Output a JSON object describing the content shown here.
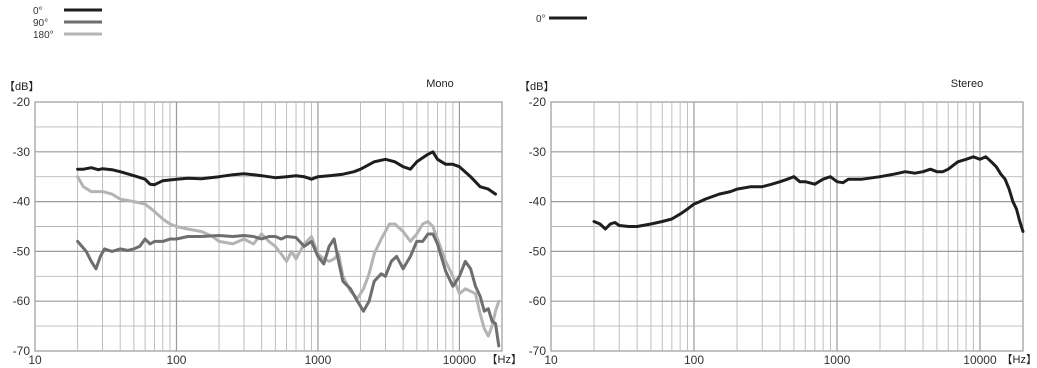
{
  "chart_data": [
    {
      "type": "line",
      "title": "Mono",
      "ylabel": "【dB】",
      "xlabel": "【Hz】",
      "x_scale": "log",
      "xlim": [
        10,
        20000
      ],
      "ylim": [
        -70,
        -20
      ],
      "x_ticks": [
        10,
        100,
        1000,
        10000
      ],
      "x_tick_labels": [
        "10",
        "100",
        "1000",
        "10000"
      ],
      "y_ticks": [
        -20,
        -30,
        -40,
        -50,
        -60,
        -70
      ],
      "y_tick_labels": [
        "-20",
        "-30",
        "-40",
        "-50",
        "-60",
        "-70"
      ],
      "grid": true,
      "legend_position": "top-left",
      "series": [
        {
          "name": "0°",
          "color": "#1e1e1e",
          "points": [
            [
              20,
              -33.5
            ],
            [
              22,
              -33.5
            ],
            [
              25,
              -33.2
            ],
            [
              28,
              -33.6
            ],
            [
              30,
              -33.4
            ],
            [
              35,
              -33.6
            ],
            [
              40,
              -34.0
            ],
            [
              50,
              -34.8
            ],
            [
              60,
              -35.5
            ],
            [
              65,
              -36.5
            ],
            [
              70,
              -36.6
            ],
            [
              80,
              -35.8
            ],
            [
              100,
              -35.5
            ],
            [
              120,
              -35.3
            ],
            [
              150,
              -35.4
            ],
            [
              200,
              -35.0
            ],
            [
              250,
              -34.6
            ],
            [
              300,
              -34.4
            ],
            [
              350,
              -34.6
            ],
            [
              400,
              -34.8
            ],
            [
              500,
              -35.2
            ],
            [
              600,
              -35.0
            ],
            [
              700,
              -34.8
            ],
            [
              800,
              -35.0
            ],
            [
              900,
              -35.5
            ],
            [
              1000,
              -35.0
            ],
            [
              1200,
              -34.8
            ],
            [
              1500,
              -34.5
            ],
            [
              1800,
              -34.0
            ],
            [
              2000,
              -33.5
            ],
            [
              2500,
              -32.0
            ],
            [
              3000,
              -31.5
            ],
            [
              3500,
              -32.0
            ],
            [
              4000,
              -33.0
            ],
            [
              4500,
              -33.5
            ],
            [
              5000,
              -32.0
            ],
            [
              6000,
              -30.5
            ],
            [
              6500,
              -30.0
            ],
            [
              7000,
              -31.5
            ],
            [
              8000,
              -32.5
            ],
            [
              9000,
              -32.5
            ],
            [
              10000,
              -33.0
            ],
            [
              12000,
              -35.0
            ],
            [
              14000,
              -37.0
            ],
            [
              16000,
              -37.5
            ],
            [
              18000,
              -38.5
            ]
          ]
        },
        {
          "name": "90°",
          "color": "#6e6e6e",
          "points": [
            [
              20,
              -48.0
            ],
            [
              23,
              -50.0
            ],
            [
              25,
              -52.0
            ],
            [
              27,
              -53.5
            ],
            [
              29,
              -51.0
            ],
            [
              31,
              -49.5
            ],
            [
              35,
              -50.0
            ],
            [
              40,
              -49.5
            ],
            [
              45,
              -49.8
            ],
            [
              50,
              -49.5
            ],
            [
              55,
              -49.0
            ],
            [
              60,
              -47.5
            ],
            [
              65,
              -48.5
            ],
            [
              70,
              -48.0
            ],
            [
              80,
              -48.0
            ],
            [
              90,
              -47.5
            ],
            [
              100,
              -47.5
            ],
            [
              120,
              -47.0
            ],
            [
              150,
              -47.0
            ],
            [
              200,
              -46.8
            ],
            [
              250,
              -47.0
            ],
            [
              300,
              -46.8
            ],
            [
              350,
              -47.0
            ],
            [
              400,
              -47.5
            ],
            [
              450,
              -47.0
            ],
            [
              500,
              -47.0
            ],
            [
              550,
              -47.5
            ],
            [
              600,
              -47.0
            ],
            [
              700,
              -47.2
            ],
            [
              800,
              -49.0
            ],
            [
              900,
              -48.0
            ],
            [
              1000,
              -51.0
            ],
            [
              1100,
              -52.5
            ],
            [
              1200,
              -49.0
            ],
            [
              1300,
              -47.5
            ],
            [
              1400,
              -52.0
            ],
            [
              1500,
              -56.0
            ],
            [
              1700,
              -57.5
            ],
            [
              1900,
              -60.0
            ],
            [
              2100,
              -62.0
            ],
            [
              2300,
              -60.0
            ],
            [
              2500,
              -56.0
            ],
            [
              2800,
              -54.5
            ],
            [
              3000,
              -55.0
            ],
            [
              3300,
              -52.0
            ],
            [
              3600,
              -51.0
            ],
            [
              4000,
              -53.5
            ],
            [
              4500,
              -51.0
            ],
            [
              5000,
              -48.0
            ],
            [
              5500,
              -48.0
            ],
            [
              6000,
              -46.5
            ],
            [
              6500,
              -46.5
            ],
            [
              7000,
              -48.5
            ],
            [
              8000,
              -54.0
            ],
            [
              9000,
              -57.0
            ],
            [
              10000,
              -55.0
            ],
            [
              11000,
              -52.0
            ],
            [
              12000,
              -53.5
            ],
            [
              13000,
              -57.0
            ],
            [
              14000,
              -59.0
            ],
            [
              15000,
              -62.0
            ],
            [
              16000,
              -61.5
            ],
            [
              17000,
              -64.0
            ],
            [
              18000,
              -64.5
            ],
            [
              19000,
              -69.0
            ]
          ]
        },
        {
          "name": "180°",
          "color": "#b4b4b4",
          "points": [
            [
              20,
              -35.0
            ],
            [
              22,
              -37.0
            ],
            [
              25,
              -38.0
            ],
            [
              30,
              -38.0
            ],
            [
              35,
              -38.5
            ],
            [
              40,
              -39.5
            ],
            [
              50,
              -40.0
            ],
            [
              60,
              -40.5
            ],
            [
              70,
              -42.0
            ],
            [
              80,
              -43.5
            ],
            [
              90,
              -44.5
            ],
            [
              100,
              -45.0
            ],
            [
              120,
              -45.5
            ],
            [
              150,
              -46.0
            ],
            [
              180,
              -47.0
            ],
            [
              200,
              -48.0
            ],
            [
              250,
              -48.5
            ],
            [
              300,
              -47.5
            ],
            [
              350,
              -48.5
            ],
            [
              400,
              -46.5
            ],
            [
              450,
              -48.0
            ],
            [
              500,
              -49.0
            ],
            [
              550,
              -50.5
            ],
            [
              600,
              -52.0
            ],
            [
              650,
              -50.0
            ],
            [
              700,
              -51.5
            ],
            [
              800,
              -48.5
            ],
            [
              900,
              -47.0
            ],
            [
              1000,
              -50.5
            ],
            [
              1100,
              -51.5
            ],
            [
              1200,
              -52.0
            ],
            [
              1300,
              -51.5
            ],
            [
              1400,
              -50.5
            ],
            [
              1500,
              -55.0
            ],
            [
              1700,
              -58.0
            ],
            [
              1900,
              -59.5
            ],
            [
              2100,
              -57.5
            ],
            [
              2300,
              -54.5
            ],
            [
              2500,
              -50.5
            ],
            [
              2800,
              -47.5
            ],
            [
              3000,
              -46.0
            ],
            [
              3200,
              -44.5
            ],
            [
              3500,
              -44.5
            ],
            [
              4000,
              -46.0
            ],
            [
              4500,
              -48.0
            ],
            [
              5000,
              -46.5
            ],
            [
              5500,
              -44.5
            ],
            [
              6000,
              -44.0
            ],
            [
              6500,
              -45.0
            ],
            [
              7000,
              -47.5
            ],
            [
              8000,
              -52.0
            ],
            [
              9000,
              -55.0
            ],
            [
              10000,
              -58.5
            ],
            [
              11000,
              -57.5
            ],
            [
              12000,
              -58.0
            ],
            [
              13000,
              -58.5
            ],
            [
              14000,
              -62.5
            ],
            [
              15000,
              -65.5
            ],
            [
              16000,
              -67.0
            ],
            [
              17000,
              -65.0
            ],
            [
              18000,
              -62.0
            ],
            [
              19000,
              -60.0
            ]
          ]
        }
      ]
    },
    {
      "type": "line",
      "title": "Stereo",
      "ylabel": "【dB】",
      "xlabel": "【Hz】",
      "x_scale": "log",
      "xlim": [
        10,
        20000
      ],
      "ylim": [
        -70,
        -20
      ],
      "x_ticks": [
        10,
        100,
        1000,
        10000
      ],
      "x_tick_labels": [
        "10",
        "100",
        "1000",
        "10000"
      ],
      "y_ticks": [
        -20,
        -30,
        -40,
        -50,
        -60,
        -70
      ],
      "y_tick_labels": [
        "-20",
        "-30",
        "-40",
        "-50",
        "-60",
        "-70"
      ],
      "grid": true,
      "legend_position": "top-left",
      "series": [
        {
          "name": "0°",
          "color": "#1e1e1e",
          "points": [
            [
              20,
              -44.0
            ],
            [
              22,
              -44.5
            ],
            [
              24,
              -45.5
            ],
            [
              26,
              -44.5
            ],
            [
              28,
              -44.2
            ],
            [
              30,
              -44.8
            ],
            [
              35,
              -45.0
            ],
            [
              40,
              -45.0
            ],
            [
              50,
              -44.5
            ],
            [
              60,
              -44.0
            ],
            [
              70,
              -43.5
            ],
            [
              80,
              -42.5
            ],
            [
              90,
              -41.5
            ],
            [
              100,
              -40.5
            ],
            [
              110,
              -40.0
            ],
            [
              120,
              -39.5
            ],
            [
              150,
              -38.5
            ],
            [
              180,
              -38.0
            ],
            [
              200,
              -37.5
            ],
            [
              250,
              -37.0
            ],
            [
              300,
              -37.0
            ],
            [
              350,
              -36.5
            ],
            [
              400,
              -36.0
            ],
            [
              450,
              -35.5
            ],
            [
              500,
              -35.0
            ],
            [
              550,
              -36.0
            ],
            [
              600,
              -36.0
            ],
            [
              700,
              -36.5
            ],
            [
              800,
              -35.5
            ],
            [
              900,
              -35.0
            ],
            [
              1000,
              -36.0
            ],
            [
              1100,
              -36.2
            ],
            [
              1200,
              -35.5
            ],
            [
              1500,
              -35.5
            ],
            [
              2000,
              -35.0
            ],
            [
              2500,
              -34.5
            ],
            [
              3000,
              -34.0
            ],
            [
              3500,
              -34.3
            ],
            [
              4000,
              -34.0
            ],
            [
              4500,
              -33.5
            ],
            [
              5000,
              -34.0
            ],
            [
              5500,
              -34.0
            ],
            [
              6000,
              -33.5
            ],
            [
              7000,
              -32.0
            ],
            [
              8000,
              -31.5
            ],
            [
              9000,
              -31.0
            ],
            [
              10000,
              -31.5
            ],
            [
              11000,
              -31.0
            ],
            [
              12000,
              -32.0
            ],
            [
              13000,
              -33.0
            ],
            [
              14000,
              -34.5
            ],
            [
              15000,
              -35.5
            ],
            [
              16000,
              -37.5
            ],
            [
              17000,
              -40.0
            ],
            [
              18000,
              -41.5
            ],
            [
              19000,
              -44.0
            ],
            [
              20000,
              -46.0
            ]
          ]
        }
      ]
    }
  ]
}
